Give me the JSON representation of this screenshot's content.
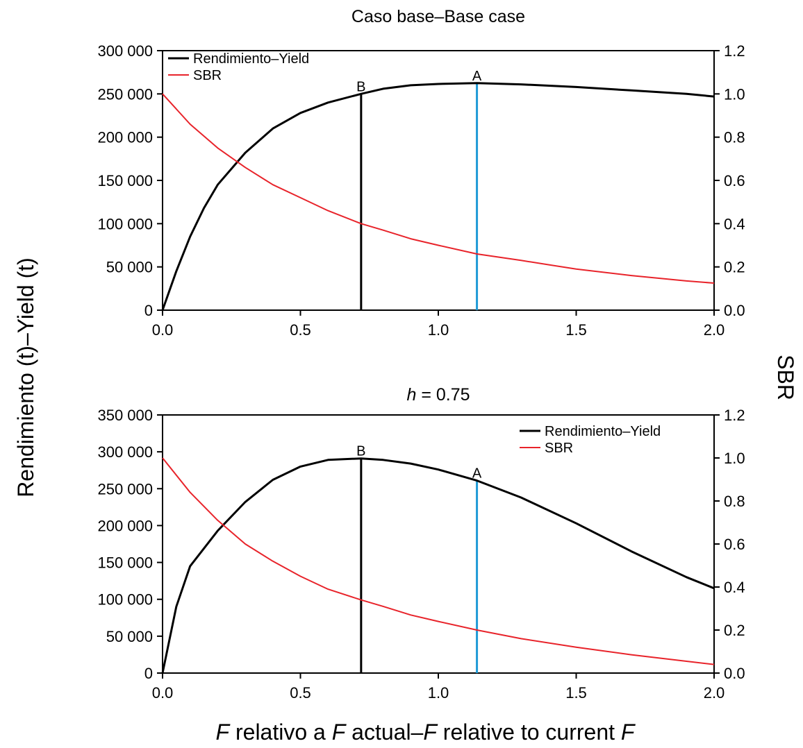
{
  "chart_data": [
    {
      "type": "line",
      "title": "Caso base–Base case",
      "title_italic_prefix": "",
      "title_rest": "",
      "xlim": [
        0,
        2
      ],
      "ylim_left": [
        0,
        300000
      ],
      "ylim_right": [
        0,
        1.2
      ],
      "x_ticks": [
        "0.0",
        "0.5",
        "1.0",
        "1.5",
        "2.0"
      ],
      "y_left_ticks": [
        "0",
        "50 000",
        "100 000",
        "150 000",
        "200 000",
        "250 000",
        "300 000"
      ],
      "y_right_ticks": [
        "0.0",
        "0.2",
        "0.4",
        "0.6",
        "0.8",
        "1.0",
        "1.2"
      ],
      "legend_position": "top-left",
      "series": [
        {
          "name": "Rendimiento–Yield",
          "axis": "left",
          "color": "#000000",
          "x": [
            0,
            0.05,
            0.1,
            0.15,
            0.2,
            0.3,
            0.4,
            0.5,
            0.6,
            0.72,
            0.8,
            0.9,
            1.0,
            1.14,
            1.3,
            1.5,
            1.7,
            1.9,
            2.0
          ],
          "y": [
            0,
            45000,
            85000,
            118000,
            145000,
            182000,
            210000,
            228000,
            240000,
            250000,
            256000,
            260000,
            261500,
            262500,
            261000,
            258000,
            254000,
            250000,
            247000
          ]
        },
        {
          "name": "SBR",
          "axis": "right",
          "color": "#e8232a",
          "x": [
            0,
            0.1,
            0.2,
            0.3,
            0.4,
            0.5,
            0.6,
            0.72,
            0.8,
            0.9,
            1.0,
            1.14,
            1.3,
            1.5,
            1.7,
            1.9,
            2.0
          ],
          "y": [
            1.0,
            0.86,
            0.75,
            0.66,
            0.58,
            0.52,
            0.46,
            0.4,
            0.37,
            0.33,
            0.3,
            0.26,
            0.23,
            0.19,
            0.16,
            0.135,
            0.125
          ]
        }
      ],
      "vlines": [
        {
          "label": "B",
          "x": 0.72,
          "color": "#000000"
        },
        {
          "label": "A",
          "x": 1.14,
          "color": "#1e9ad6"
        }
      ]
    },
    {
      "type": "line",
      "title": "",
      "title_italic_prefix": "h",
      "title_rest": " = 0.75",
      "xlim": [
        0,
        2
      ],
      "ylim_left": [
        0,
        350000
      ],
      "ylim_right": [
        0,
        1.2
      ],
      "x_ticks": [
        "0.0",
        "0.5",
        "1.0",
        "1.5",
        "2.0"
      ],
      "y_left_ticks": [
        "0",
        "50 000",
        "100 000",
        "150 000",
        "200 000",
        "250 000",
        "300 000",
        "350 000"
      ],
      "y_right_ticks": [
        "0.0",
        "0.2",
        "0.4",
        "0.6",
        "0.8",
        "1.0",
        "1.2"
      ],
      "legend_position": "top-right",
      "series": [
        {
          "name": "Rendimiento–Yield",
          "axis": "left",
          "color": "#000000",
          "x": [
            0,
            0.05,
            0.1,
            0.2,
            0.3,
            0.4,
            0.5,
            0.6,
            0.72,
            0.8,
            0.9,
            1.0,
            1.14,
            1.3,
            1.5,
            1.7,
            1.9,
            2.0
          ],
          "y": [
            0,
            90000,
            145000,
            193000,
            232000,
            262000,
            280000,
            289000,
            291000,
            289000,
            284000,
            276000,
            261000,
            238000,
            203000,
            165000,
            130000,
            115000
          ]
        },
        {
          "name": "SBR",
          "axis": "right",
          "color": "#e8232a",
          "x": [
            0,
            0.1,
            0.2,
            0.3,
            0.4,
            0.5,
            0.6,
            0.72,
            0.8,
            0.9,
            1.0,
            1.14,
            1.3,
            1.5,
            1.7,
            1.9,
            2.0
          ],
          "y": [
            1.0,
            0.84,
            0.71,
            0.6,
            0.52,
            0.45,
            0.39,
            0.34,
            0.31,
            0.27,
            0.24,
            0.2,
            0.16,
            0.12,
            0.085,
            0.055,
            0.04
          ]
        }
      ],
      "vlines": [
        {
          "label": "B",
          "x": 0.72,
          "color": "#000000"
        },
        {
          "label": "A",
          "x": 1.14,
          "color": "#1e9ad6"
        }
      ]
    }
  ],
  "shared_ylabel_left": "Rendimiento (t)–Yield (t)",
  "shared_ylabel_right": "SBR",
  "shared_xlabel": {
    "p1": "F",
    "p2": " relativo a ",
    "p3": "F",
    "p4": " actual–",
    "p5": "F",
    "p6": " relative to current ",
    "p7": "F"
  }
}
